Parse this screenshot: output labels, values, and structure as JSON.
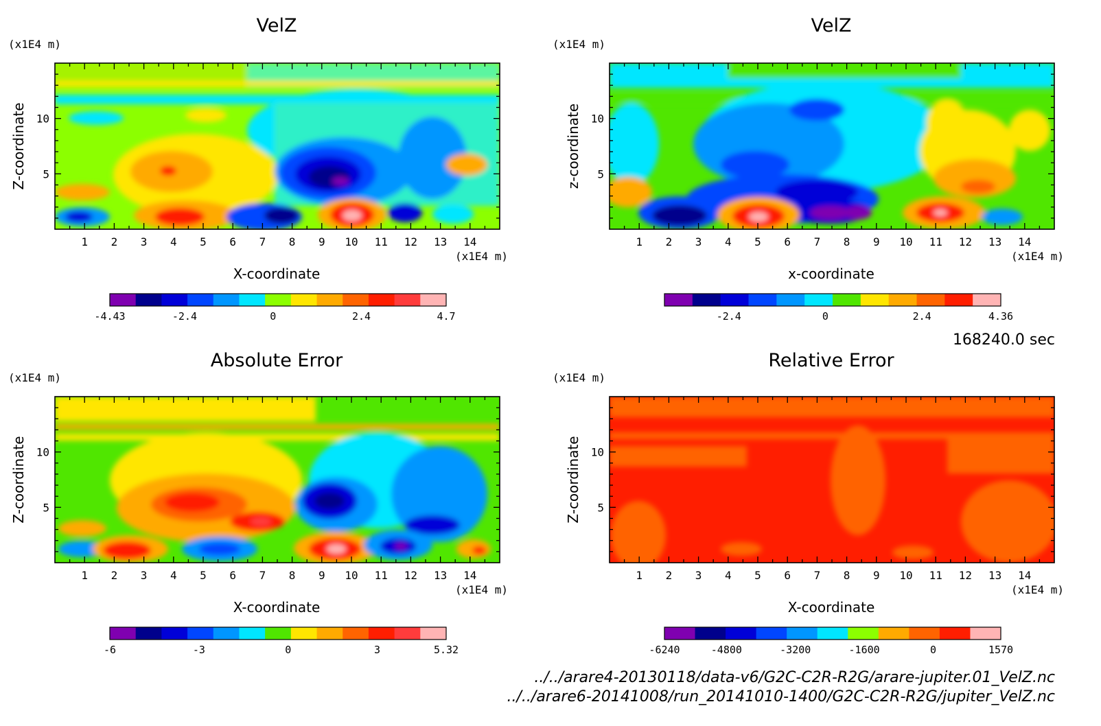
{
  "figure": {
    "time_label": "168240.0 sec",
    "files": [
      "../../arare4-20130118/data-v6/G2C-C2R-R2G/arare-jupiter.01_VelZ.nc",
      "../../arare6-20141008/run_20141010-1400/G2C-C2R-R2G/jupiter_VelZ.nc"
    ]
  },
  "chart_data": [
    {
      "type": "heatmap",
      "title": "VelZ",
      "xlabel": "X-coordinate",
      "ylabel": "Z-coordinate",
      "x_unit": "(x1E4 m)",
      "y_unit": "(x1E4 m)",
      "xlim": [
        0,
        15
      ],
      "ylim": [
        0,
        15
      ],
      "x_ticks": [
        "1",
        "2",
        "3",
        "4",
        "5",
        "6",
        "7",
        "8",
        "9",
        "10",
        "11",
        "12",
        "13",
        "14"
      ],
      "y_ticks": [
        "5",
        "10"
      ],
      "colorbar": {
        "colors": [
          "#7f00b0",
          "#00008c",
          "#0000d8",
          "#0046ff",
          "#0096ff",
          "#00e6ff",
          "#8cff00",
          "#ffe600",
          "#ffaa00",
          "#ff6400",
          "#ff1e00",
          "#ff3c3c",
          "#ffb4b4"
        ],
        "tick_labels": [
          "-4.43",
          "-2.4",
          "0",
          "2.4",
          "4.7"
        ],
        "min": -4.43,
        "max": 4.7
      }
    },
    {
      "type": "heatmap",
      "title": "VelZ",
      "xlabel": "x-coordinate",
      "ylabel": "z-coordinate",
      "x_unit": "(x1E4 m)",
      "y_unit": "(x1E4 m)",
      "xlim": [
        0,
        15
      ],
      "ylim": [
        0,
        15
      ],
      "x_ticks": [
        "1",
        "2",
        "3",
        "4",
        "5",
        "6",
        "7",
        "8",
        "9",
        "10",
        "11",
        "12",
        "13",
        "14"
      ],
      "y_ticks": [
        "5",
        "10"
      ],
      "colorbar": {
        "colors": [
          "#7f00b0",
          "#00008c",
          "#0000d8",
          "#0046ff",
          "#0096ff",
          "#00e6ff",
          "#50e600",
          "#ffe600",
          "#ffaa00",
          "#ff6400",
          "#ff1e00",
          "#ffb4b4"
        ],
        "tick_labels": [
          "-2.4",
          "0",
          "2.4",
          "4.36"
        ],
        "min": -4.0,
        "max": 4.36
      }
    },
    {
      "type": "heatmap",
      "title": "Absolute Error",
      "xlabel": "X-coordinate",
      "ylabel": "Z-coordinate",
      "x_unit": "(x1E4 m)",
      "y_unit": "(x1E4 m)",
      "xlim": [
        0,
        15
      ],
      "ylim": [
        0,
        15
      ],
      "x_ticks": [
        "1",
        "2",
        "3",
        "4",
        "5",
        "6",
        "7",
        "8",
        "9",
        "10",
        "11",
        "12",
        "13",
        "14"
      ],
      "y_ticks": [
        "5",
        "10"
      ],
      "colorbar": {
        "colors": [
          "#7f00b0",
          "#00008c",
          "#0000d8",
          "#0046ff",
          "#0096ff",
          "#00e6ff",
          "#50e600",
          "#ffe600",
          "#ffaa00",
          "#ff6400",
          "#ff1e00",
          "#ff3c3c",
          "#ffb4b4"
        ],
        "tick_labels": [
          "-6",
          "-3",
          "0",
          "3",
          "5.32"
        ],
        "min": -6,
        "max": 5.32
      }
    },
    {
      "type": "heatmap",
      "title": "Relative Error",
      "xlabel": "X-coordinate",
      "ylabel": "Z-coordinate",
      "x_unit": "(x1E4 m)",
      "y_unit": "(x1E4 m)",
      "xlim": [
        0,
        15
      ],
      "ylim": [
        0,
        15
      ],
      "x_ticks": [
        "1",
        "2",
        "3",
        "4",
        "5",
        "6",
        "7",
        "8",
        "9",
        "10",
        "11",
        "12",
        "13",
        "14"
      ],
      "y_ticks": [
        "5",
        "10"
      ],
      "colorbar": {
        "colors": [
          "#7f00b0",
          "#00008c",
          "#0000d8",
          "#0046ff",
          "#0096ff",
          "#00e6ff",
          "#8cff00",
          "#ffaa00",
          "#ff6400",
          "#ff1e00",
          "#ffb4b4"
        ],
        "tick_labels": [
          "-6240",
          "-4800",
          "-3200",
          "-1600",
          "0",
          "1570"
        ],
        "min": -6240,
        "max": 1570
      }
    }
  ]
}
